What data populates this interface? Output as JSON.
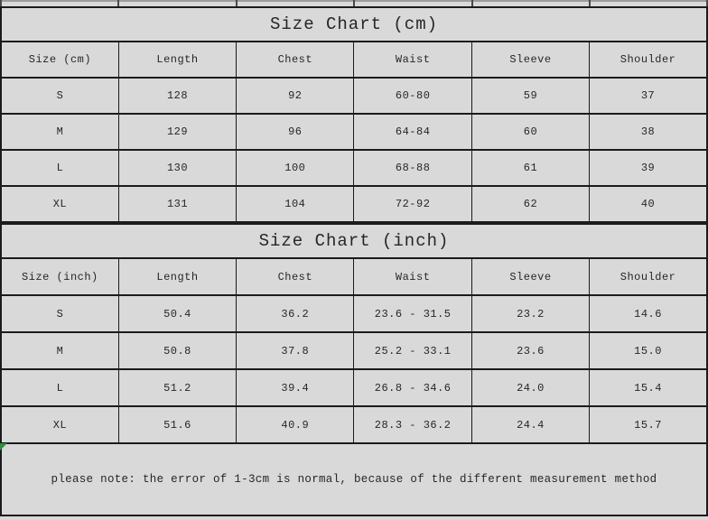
{
  "page": {
    "background": "#d9d9d9",
    "border_color": "#1b1b1b",
    "text_color": "#262626",
    "artifact_green": "#2f8f3a"
  },
  "tables": [
    {
      "title": "Size Chart (cm)",
      "headers": [
        "Size (cm)",
        "Length",
        "Chest",
        "Waist",
        "Sleeve",
        "Shoulder"
      ],
      "rows": [
        [
          "S",
          "128",
          "92",
          "60-80",
          "59",
          "37"
        ],
        [
          "M",
          "129",
          "96",
          "64-84",
          "60",
          "38"
        ],
        [
          "L",
          "130",
          "100",
          "68-88",
          "61",
          "39"
        ],
        [
          "XL",
          "131",
          "104",
          "72-92",
          "62",
          "40"
        ]
      ]
    },
    {
      "title": "Size Chart (inch)",
      "headers": [
        "Size (inch)",
        "Length",
        "Chest",
        "Waist",
        "Sleeve",
        "Shoulder"
      ],
      "rows": [
        [
          "S",
          "50.4",
          "36.2",
          "23.6 - 31.5",
          "23.2",
          "14.6"
        ],
        [
          "M",
          "50.8",
          "37.8",
          "25.2 - 33.1",
          "23.6",
          "15.0"
        ],
        [
          "L",
          "51.2",
          "39.4",
          "26.8 - 34.6",
          "24.0",
          "15.4"
        ],
        [
          "XL",
          "51.6",
          "40.9",
          "28.3 - 36.2",
          "24.4",
          "15.7"
        ]
      ]
    }
  ],
  "note": "please note: the error of 1-3cm is normal, because of the different measurement method"
}
